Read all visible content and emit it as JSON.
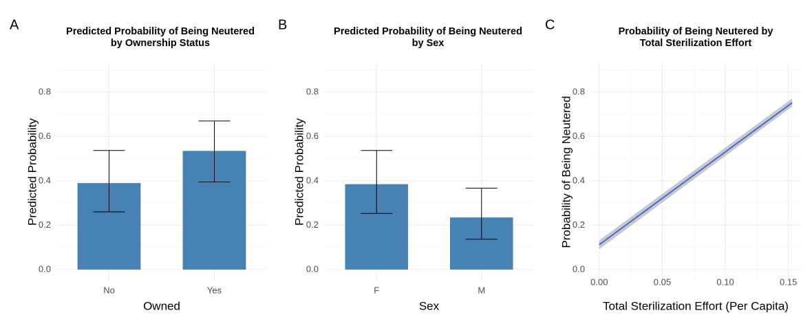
{
  "chart_data": [
    {
      "type": "bar",
      "panel_label": "A",
      "title": [
        "Predicted Probability of Being Neutered",
        "by Ownership Status"
      ],
      "xlabel": "Owned",
      "ylabel": "Predicted Probability",
      "categories": [
        "No",
        "Yes"
      ],
      "values": [
        0.39,
        0.535
      ],
      "error_low": [
        0.26,
        0.395
      ],
      "error_high": [
        0.537,
        0.67
      ],
      "ylim": [
        -0.05,
        0.93
      ],
      "yticks": [
        "0.0",
        "0.2",
        "0.4",
        "0.6",
        "0.8"
      ],
      "bar_color": "#4682B4",
      "grid": true
    },
    {
      "type": "bar",
      "panel_label": "B",
      "title": [
        "Predicted Probability of Being Neutered",
        "by Sex"
      ],
      "xlabel": "Sex",
      "ylabel": "Predicted Probability",
      "categories": [
        "F",
        "M"
      ],
      "values": [
        0.385,
        0.235
      ],
      "error_low": [
        0.253,
        0.137
      ],
      "error_high": [
        0.537,
        0.367
      ],
      "ylim": [
        -0.05,
        0.93
      ],
      "yticks": [
        "0.0",
        "0.2",
        "0.4",
        "0.6",
        "0.8"
      ],
      "bar_color": "#4682B4",
      "grid": true
    },
    {
      "type": "line",
      "panel_label": "C",
      "title": [
        "Probability of Being Neutered by",
        "Total Sterilization Effort"
      ],
      "xlabel": "Total Sterilization Effort (Per Capita)",
      "ylabel": "Probability of Being Neutered",
      "x": [
        0.0,
        0.153
      ],
      "y": [
        0.112,
        0.752
      ],
      "ci_low": [
        0.092,
        0.735
      ],
      "ci_high": [
        0.132,
        0.772
      ],
      "xlim": [
        -0.007,
        0.16
      ],
      "ylim": [
        -0.05,
        0.93
      ],
      "xticks": [
        0.0,
        0.05,
        0.1,
        0.15
      ],
      "xtick_labels": [
        "0.00",
        "0.05",
        "0.10",
        "0.15"
      ],
      "yticks": [
        "0.0",
        "0.2",
        "0.4",
        "0.6",
        "0.8"
      ],
      "line_color": "#3366E0",
      "ribbon_color": "#BEBEBE",
      "grid": true
    }
  ]
}
